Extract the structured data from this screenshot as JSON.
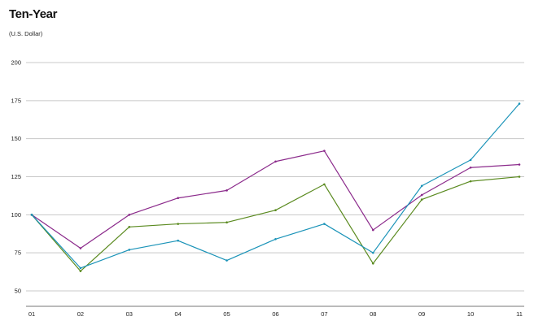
{
  "chart_data": {
    "type": "line",
    "title": "Ten-Year",
    "subtitle": "(U.S. Dollar)",
    "xlabel": "",
    "ylabel": "",
    "categories": [
      "01",
      "02",
      "03",
      "04",
      "05",
      "06",
      "07",
      "08",
      "09",
      "10",
      "11"
    ],
    "y_ticks": [
      "50",
      "75",
      "100",
      "125",
      "150",
      "175",
      "200"
    ],
    "ylim": [
      40,
      200
    ],
    "grid": true,
    "legend": "none",
    "series": [
      {
        "color": "#8b2a8b",
        "values": [
          100,
          78,
          100,
          111,
          116,
          135,
          142,
          90,
          113,
          131,
          133
        ]
      },
      {
        "color": "#5a8a1f",
        "values": [
          100,
          63,
          92,
          94,
          95,
          103,
          120,
          68,
          110,
          122,
          125
        ]
      },
      {
        "color": "#1a93b8",
        "values": [
          100,
          65,
          77,
          83,
          70,
          84,
          94,
          75,
          119,
          136,
          173
        ]
      }
    ]
  }
}
